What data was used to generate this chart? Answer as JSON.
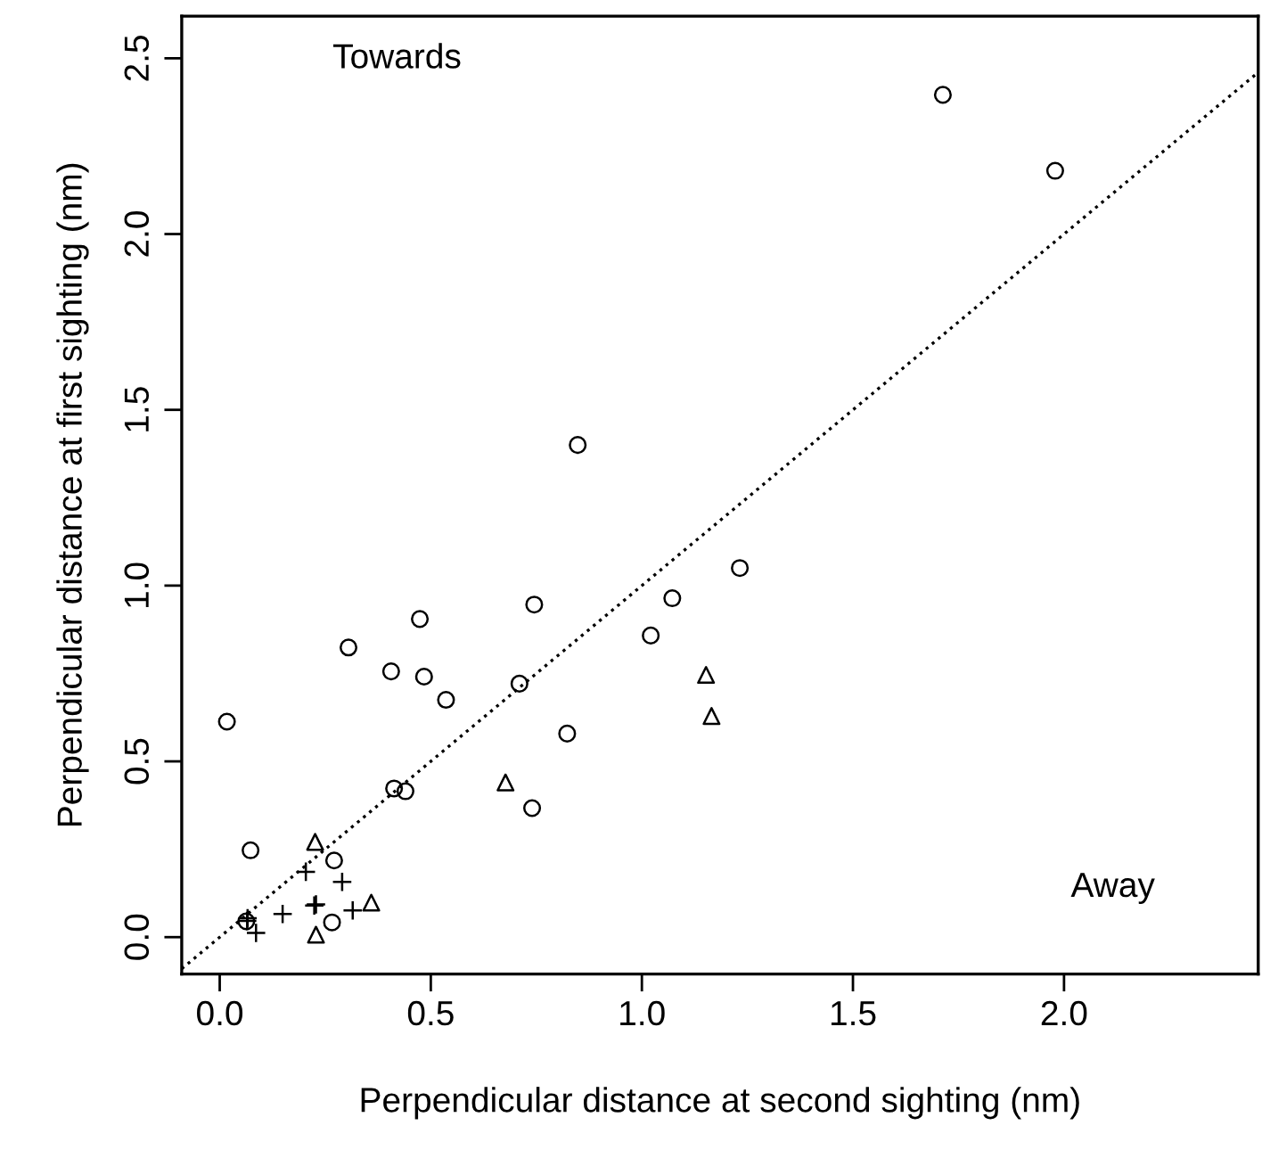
{
  "chart_data": {
    "type": "scatter",
    "xlabel": "Perpendicular distance at second sighting (nm)",
    "ylabel": "Perpendicular distance at first sighting (nm)",
    "annotations": [
      "Towards",
      "Away"
    ],
    "series": [
      {
        "marker": "circle",
        "color": "#000000",
        "x": [
          1.713,
          1.979,
          0.848,
          1.232,
          1.072,
          1.021,
          0.017,
          0.305,
          0.474,
          0.745,
          0.406,
          0.484,
          0.536,
          0.71,
          0.823,
          0.74,
          0.413,
          0.44,
          0.073,
          0.271,
          0.266,
          0.063
        ],
        "values": [
          2.396,
          2.18,
          1.4,
          1.05,
          0.964,
          0.858,
          0.613,
          0.824,
          0.905,
          0.946,
          0.756,
          0.741,
          0.675,
          0.721,
          0.579,
          0.367,
          0.423,
          0.415,
          0.247,
          0.218,
          0.042,
          0.045
        ]
      },
      {
        "marker": "triangle",
        "color": "#000000",
        "x": [
          1.152,
          1.165,
          0.677,
          0.226,
          0.359,
          0.228
        ],
        "values": [
          0.746,
          0.629,
          0.44,
          0.271,
          0.098,
          0.007
        ]
      },
      {
        "marker": "cross",
        "color": "#000000",
        "x": [
          0.204,
          0.29,
          0.228,
          0.224,
          0.149,
          0.315,
          0.066,
          0.086,
          0.065
        ],
        "values": [
          0.186,
          0.157,
          0.093,
          0.09,
          0.066,
          0.076,
          0.054,
          0.012,
          0.046
        ]
      },
      {
        "type": "line",
        "line_style": "dotted",
        "color": "#000000",
        "x": [
          -0.09,
          2.46
        ],
        "values": [
          -0.09,
          2.46
        ]
      }
    ],
    "xlim": [
      -0.09,
      2.46
    ],
    "ylim": [
      -0.105,
      2.62
    ],
    "xticks": [
      {
        "value": 0,
        "label": "0.0"
      },
      0.5,
      {
        "value": 1,
        "label": "1.0"
      },
      1.5,
      {
        "value": 2,
        "label": "2.0"
      }
    ],
    "yticks": [
      {
        "value": 0,
        "label": "0.0"
      },
      0.5,
      {
        "value": 1,
        "label": "1.0"
      },
      1.5,
      {
        "value": 2,
        "label": "2.0"
      },
      2.5
    ],
    "grid": false,
    "legend": false
  }
}
